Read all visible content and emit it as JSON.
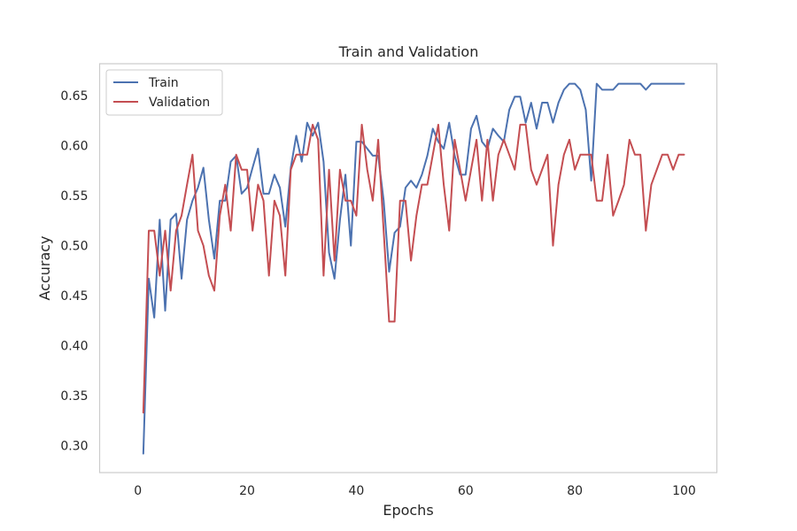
{
  "chart_data": {
    "type": "line",
    "title": "Train and Validation",
    "xlabel": "Epochs",
    "ylabel": "Accuracy",
    "xlim": [
      -7,
      106
    ],
    "ylim": [
      0.273,
      0.682
    ],
    "xticks": [
      0,
      20,
      40,
      60,
      80,
      100
    ],
    "yticks": [
      0.3,
      0.35,
      0.4,
      0.45,
      0.5,
      0.55,
      0.6,
      0.65
    ],
    "grid": false,
    "legend_position": "top-left",
    "x": [
      1,
      2,
      3,
      4,
      5,
      6,
      7,
      8,
      9,
      10,
      11,
      12,
      13,
      14,
      15,
      16,
      17,
      18,
      19,
      20,
      21,
      22,
      23,
      24,
      25,
      26,
      27,
      28,
      29,
      30,
      31,
      32,
      33,
      34,
      35,
      36,
      37,
      38,
      39,
      40,
      41,
      42,
      43,
      44,
      45,
      46,
      47,
      48,
      49,
      50,
      51,
      52,
      53,
      54,
      55,
      56,
      57,
      58,
      59,
      60,
      61,
      62,
      63,
      64,
      65,
      66,
      67,
      68,
      69,
      70,
      71,
      72,
      73,
      74,
      75,
      76,
      77,
      78,
      79,
      80,
      81,
      82,
      83,
      84,
      85,
      86,
      87,
      88,
      89,
      90,
      91,
      92,
      93,
      94,
      95,
      96,
      97,
      98,
      99,
      100
    ],
    "series": [
      {
        "name": "Train",
        "color": "#4c72b0",
        "values": [
          0.292,
          0.467,
          0.428,
          0.526,
          0.435,
          0.526,
          0.532,
          0.467,
          0.526,
          0.545,
          0.558,
          0.578,
          0.526,
          0.487,
          0.545,
          0.545,
          0.584,
          0.59,
          0.552,
          0.558,
          0.578,
          0.597,
          0.552,
          0.552,
          0.571,
          0.558,
          0.519,
          0.578,
          0.61,
          0.584,
          0.623,
          0.61,
          0.623,
          0.584,
          0.493,
          0.467,
          0.526,
          0.571,
          0.5,
          0.604,
          0.604,
          0.597,
          0.59,
          0.59,
          0.545,
          0.474,
          0.513,
          0.519,
          0.558,
          0.565,
          0.558,
          0.571,
          0.59,
          0.617,
          0.604,
          0.597,
          0.623,
          0.59,
          0.571,
          0.571,
          0.617,
          0.63,
          0.604,
          0.597,
          0.617,
          0.61,
          0.604,
          0.636,
          0.649,
          0.649,
          0.623,
          0.643,
          0.617,
          0.643,
          0.643,
          0.623,
          0.643,
          0.656,
          0.662,
          0.662,
          0.656,
          0.636,
          0.565,
          0.662,
          0.656,
          0.656,
          0.656,
          0.662,
          0.662,
          0.662,
          0.662,
          0.662,
          0.656,
          0.662,
          0.662,
          0.662,
          0.662,
          0.662,
          0.662,
          0.662
        ]
      },
      {
        "name": "Validation",
        "color": "#c44e52",
        "values": [
          0.333,
          0.515,
          0.515,
          0.47,
          0.515,
          0.455,
          0.515,
          0.53,
          0.561,
          0.591,
          0.515,
          0.5,
          0.47,
          0.455,
          0.53,
          0.561,
          0.515,
          0.591,
          0.576,
          0.576,
          0.515,
          0.561,
          0.545,
          0.47,
          0.545,
          0.53,
          0.47,
          0.576,
          0.591,
          0.591,
          0.591,
          0.621,
          0.606,
          0.47,
          0.576,
          0.485,
          0.576,
          0.545,
          0.545,
          0.53,
          0.621,
          0.576,
          0.545,
          0.606,
          0.515,
          0.424,
          0.424,
          0.545,
          0.545,
          0.485,
          0.53,
          0.561,
          0.561,
          0.591,
          0.621,
          0.561,
          0.515,
          0.606,
          0.576,
          0.545,
          0.576,
          0.606,
          0.545,
          0.606,
          0.545,
          0.591,
          0.606,
          0.591,
          0.576,
          0.621,
          0.621,
          0.576,
          0.561,
          0.576,
          0.591,
          0.5,
          0.561,
          0.591,
          0.606,
          0.576,
          0.591,
          0.591,
          0.591,
          0.545,
          0.545,
          0.591,
          0.53,
          0.545,
          0.561,
          0.606,
          0.591,
          0.591,
          0.515,
          0.561,
          0.576,
          0.591,
          0.591,
          0.576,
          0.591,
          0.591
        ]
      }
    ]
  }
}
